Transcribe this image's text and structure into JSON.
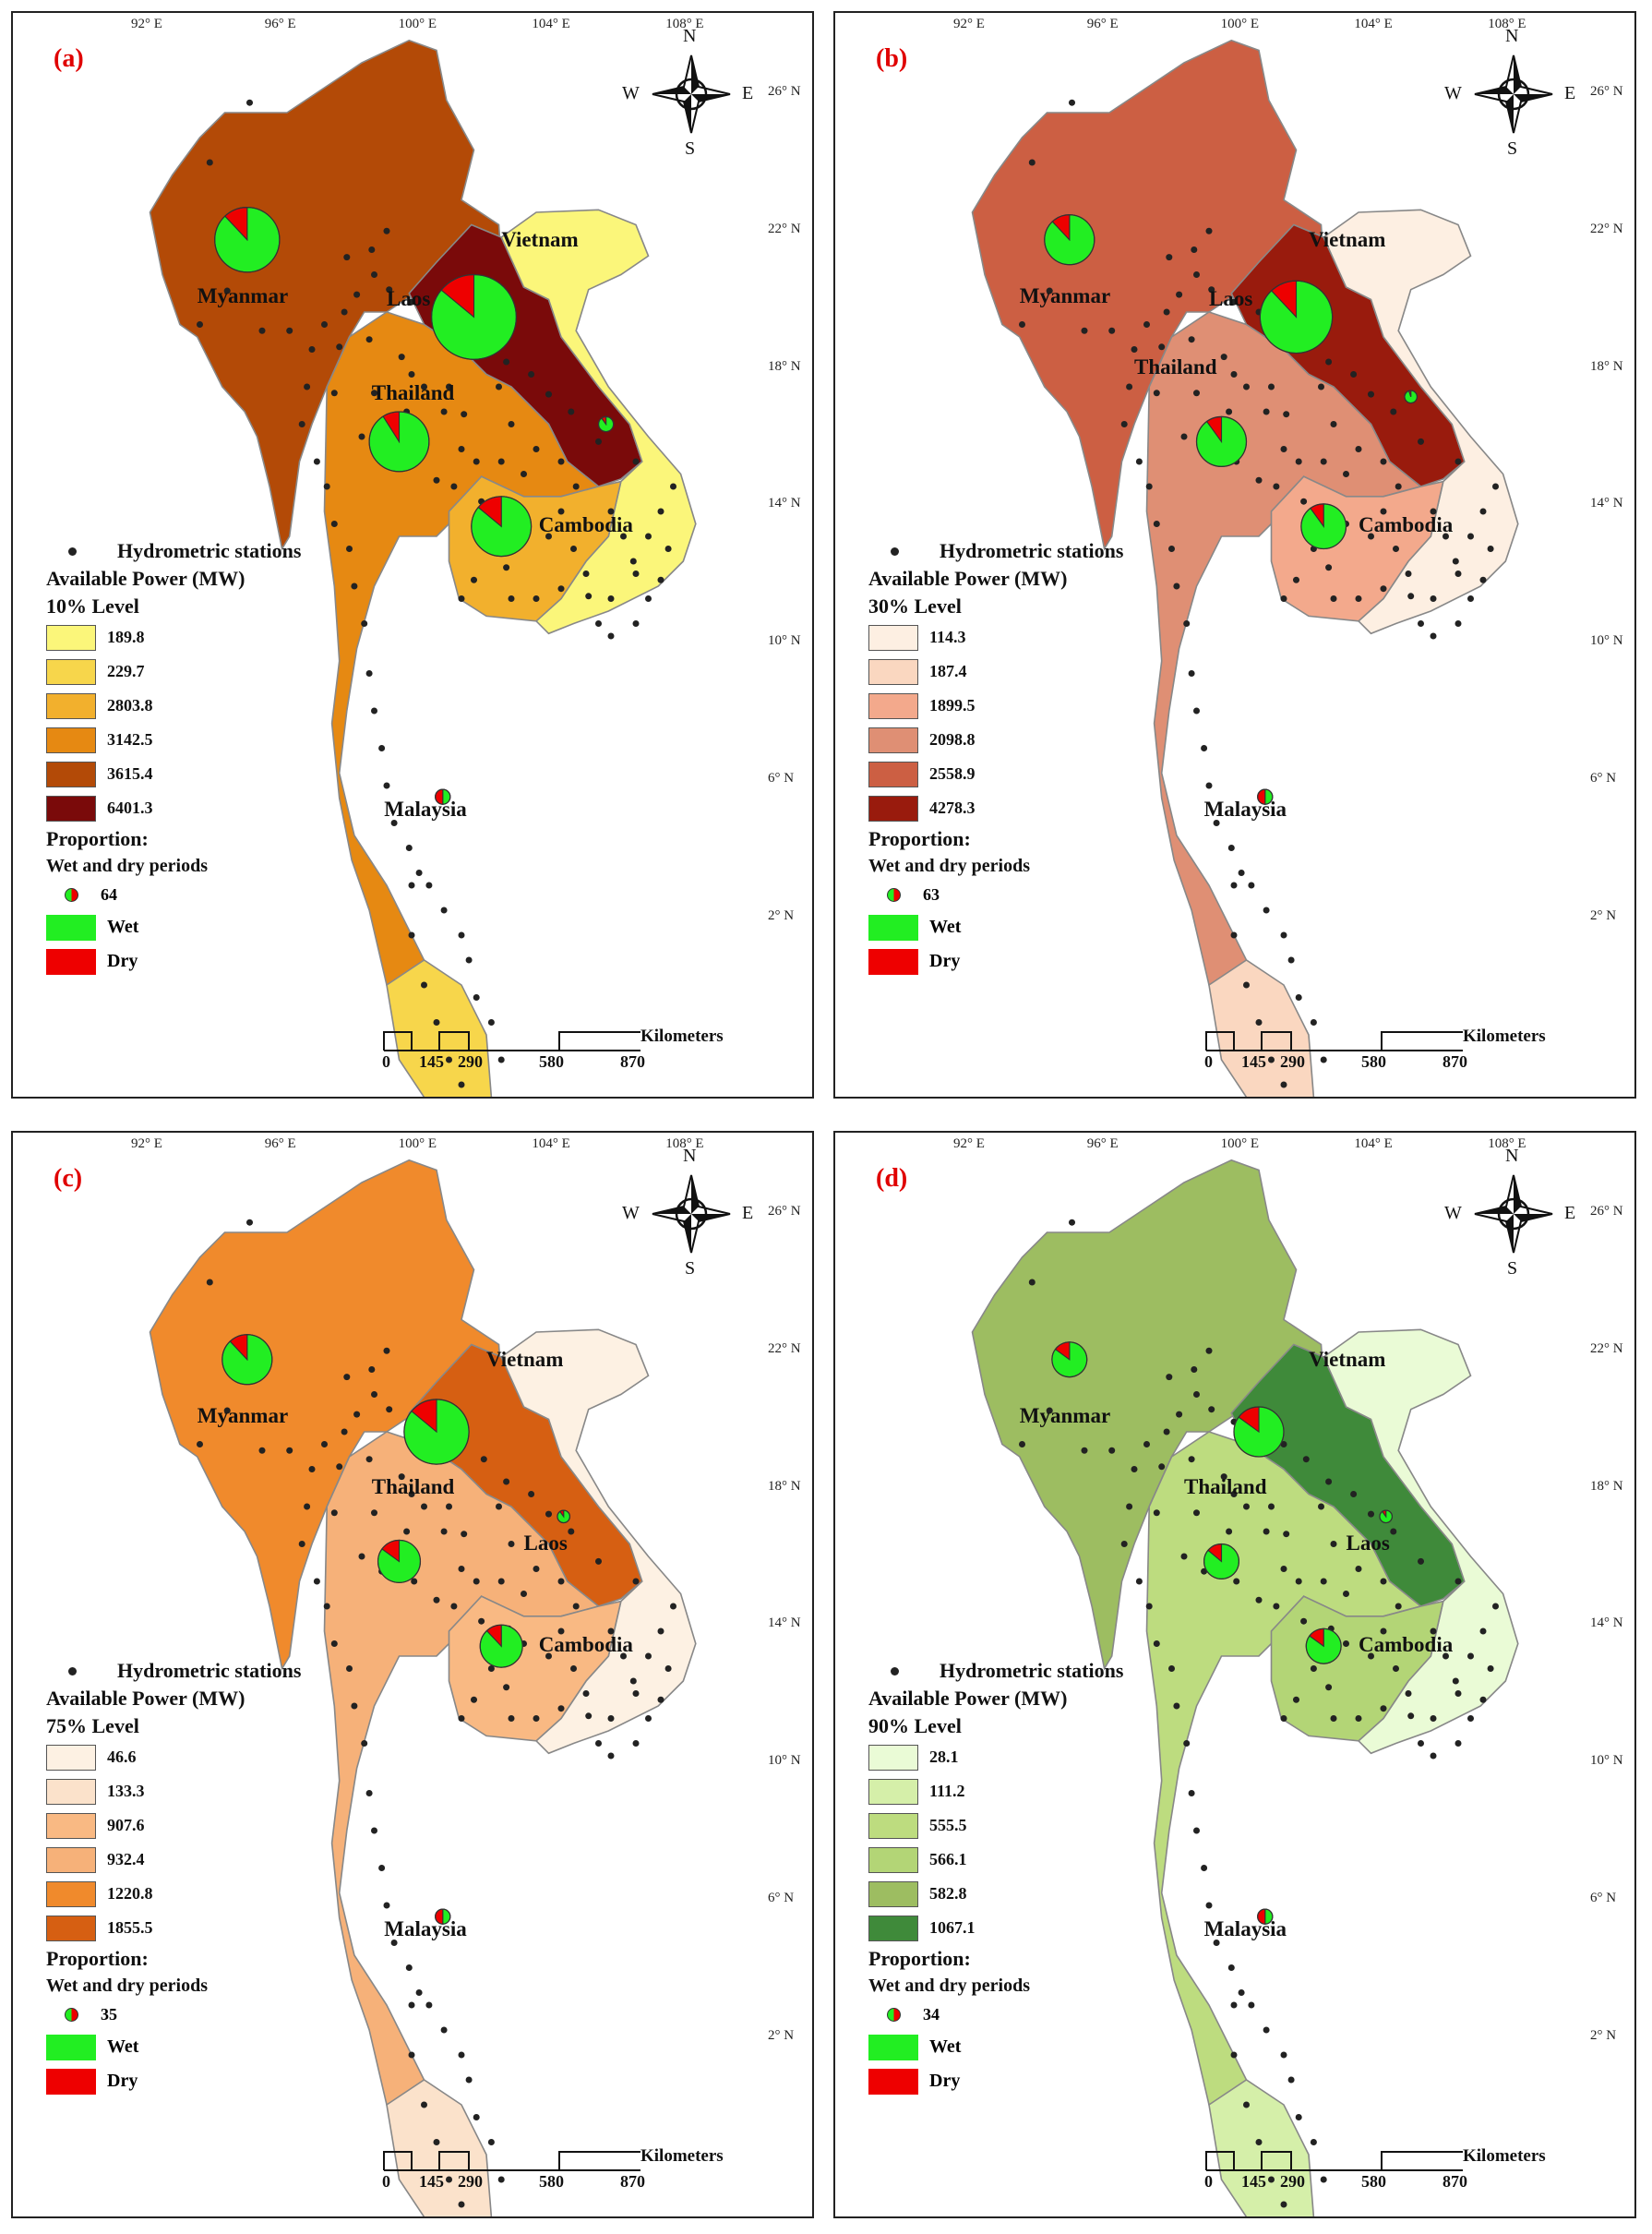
{
  "lon_ticks": [
    "92° E",
    "96° E",
    "100° E",
    "104° E",
    "108° E"
  ],
  "lat_ticks": [
    "26° N",
    "22° N",
    "18° N",
    "14° N",
    "10° N",
    "6° N",
    "2° N"
  ],
  "compass": {
    "n": "N",
    "s": "S",
    "e": "E",
    "w": "W"
  },
  "legend_common": {
    "stations": "Hydrometric stations",
    "power_title": "Available Power (MW)",
    "proportion": "Proportion:",
    "wet_dry": "Wet and dry periods",
    "wet": "Wet",
    "dry": "Dry"
  },
  "scale_bar": {
    "ticks": [
      "0",
      "145",
      "290",
      "580",
      "870"
    ],
    "unit": "Kilometers"
  },
  "colors": {
    "wet": "#22ee22",
    "dry": "#ee0000",
    "border": "#888888",
    "station": "#222222"
  },
  "panels": [
    {
      "label": "(a)",
      "level": "10% Level",
      "pie_legend_value": "64",
      "countries": {
        "myanmar": "Myanmar",
        "laos": "Laos",
        "vietnam": "Vietnam",
        "thailand": "Thailand",
        "cambodia": "Cambodia",
        "malaysia": "Malaysia"
      },
      "classes": [
        {
          "value": "189.8",
          "color": "#fbf67a"
        },
        {
          "value": "229.7",
          "color": "#f7d64b"
        },
        {
          "value": "2803.8",
          "color": "#f2b02d"
        },
        {
          "value": "3142.5",
          "color": "#e68912"
        },
        {
          "value": "3615.4",
          "color": "#b34a07"
        },
        {
          "value": "6401.3",
          "color": "#7a0a0a"
        }
      ],
      "fills": {
        "myanmar": "#b34a07",
        "laos": "#7a0a0a",
        "vietnam": "#fbf67a",
        "thailand": "#e68912",
        "cambodia": "#f2b02d",
        "malaysia": "#f7d64b"
      },
      "pies": {
        "myanmar": {
          "wet": 0.88
        },
        "laos": {
          "wet": 0.86
        },
        "thailand": {
          "wet": 0.91
        },
        "cambodia": {
          "wet": 0.86
        },
        "vietnam": {
          "wet": 0.9
        },
        "malaysia": {
          "wet": 0.5
        }
      }
    },
    {
      "label": "(b)",
      "level": "30% Level",
      "pie_legend_value": "63",
      "countries": {
        "myanmar": "Myanmar",
        "laos": "Laos",
        "vietnam": "Vietnam",
        "thailand": "Thailand",
        "cambodia": "Cambodia",
        "malaysia": "Malaysia"
      },
      "classes": [
        {
          "value": "114.3",
          "color": "#fdefe2"
        },
        {
          "value": "187.4",
          "color": "#fad7c0"
        },
        {
          "value": "1899.5",
          "color": "#f3a98c"
        },
        {
          "value": "2098.8",
          "color": "#df8f74"
        },
        {
          "value": "2558.9",
          "color": "#cc5f43"
        },
        {
          "value": "4278.3",
          "color": "#991b0d"
        }
      ],
      "fills": {
        "myanmar": "#cc5f43",
        "laos": "#991b0d",
        "vietnam": "#fdefe2",
        "thailand": "#df8f74",
        "cambodia": "#f3a98c",
        "malaysia": "#fad7c0"
      },
      "pies": {
        "myanmar": {
          "wet": 0.88
        },
        "laos": {
          "wet": 0.88
        },
        "thailand": {
          "wet": 0.9
        },
        "cambodia": {
          "wet": 0.9
        },
        "vietnam": {
          "wet": 0.95
        },
        "malaysia": {
          "wet": 0.5
        }
      }
    },
    {
      "label": "(c)",
      "level": "75% Level",
      "pie_legend_value": "35",
      "countries": {
        "myanmar": "Myanmar",
        "laos": "Laos",
        "vietnam": "Vietnam",
        "thailand": "Thailand",
        "cambodia": "Cambodia",
        "malaysia": "Malaysia"
      },
      "classes": [
        {
          "value": "46.6",
          "color": "#fdf1e3"
        },
        {
          "value": "133.3",
          "color": "#fbe2cb"
        },
        {
          "value": "907.6",
          "color": "#f9b983"
        },
        {
          "value": "932.4",
          "color": "#f6b179"
        },
        {
          "value": "1220.8",
          "color": "#f08a2c"
        },
        {
          "value": "1855.5",
          "color": "#d65f12"
        }
      ],
      "fills": {
        "myanmar": "#f08a2c",
        "laos": "#d65f12",
        "vietnam": "#fdf1e3",
        "thailand": "#f6b179",
        "cambodia": "#f9b983",
        "malaysia": "#fbe2cb"
      },
      "pies": {
        "myanmar": {
          "wet": 0.88
        },
        "laos": {
          "wet": 0.86
        },
        "thailand": {
          "wet": 0.85
        },
        "cambodia": {
          "wet": 0.88
        },
        "vietnam": {
          "wet": 0.9
        },
        "malaysia": {
          "wet": 0.5
        }
      }
    },
    {
      "label": "(d)",
      "level": "90% Level",
      "pie_legend_value": "34",
      "countries": {
        "myanmar": "Myanmar",
        "laos": "Laos",
        "vietnam": "Vietnam",
        "thailand": "Thailand",
        "cambodia": "Cambodia",
        "malaysia": "Malaysia"
      },
      "classes": [
        {
          "value": "28.1",
          "color": "#eafbd6"
        },
        {
          "value": "111.2",
          "color": "#d5efa9"
        },
        {
          "value": "555.5",
          "color": "#bddc7f"
        },
        {
          "value": "566.1",
          "color": "#b3d576"
        },
        {
          "value": "582.8",
          "color": "#9dbd61"
        },
        {
          "value": "1067.1",
          "color": "#3f8a3a"
        }
      ],
      "fills": {
        "myanmar": "#9dbd61",
        "laos": "#3f8a3a",
        "vietnam": "#eafbd6",
        "thailand": "#bddc7f",
        "cambodia": "#b3d576",
        "malaysia": "#d5efa9"
      },
      "pies": {
        "myanmar": {
          "wet": 0.85
        },
        "laos": {
          "wet": 0.85
        },
        "thailand": {
          "wet": 0.86
        },
        "cambodia": {
          "wet": 0.85
        },
        "vietnam": {
          "wet": 0.9
        },
        "malaysia": {
          "wet": 0.5
        }
      }
    }
  ]
}
